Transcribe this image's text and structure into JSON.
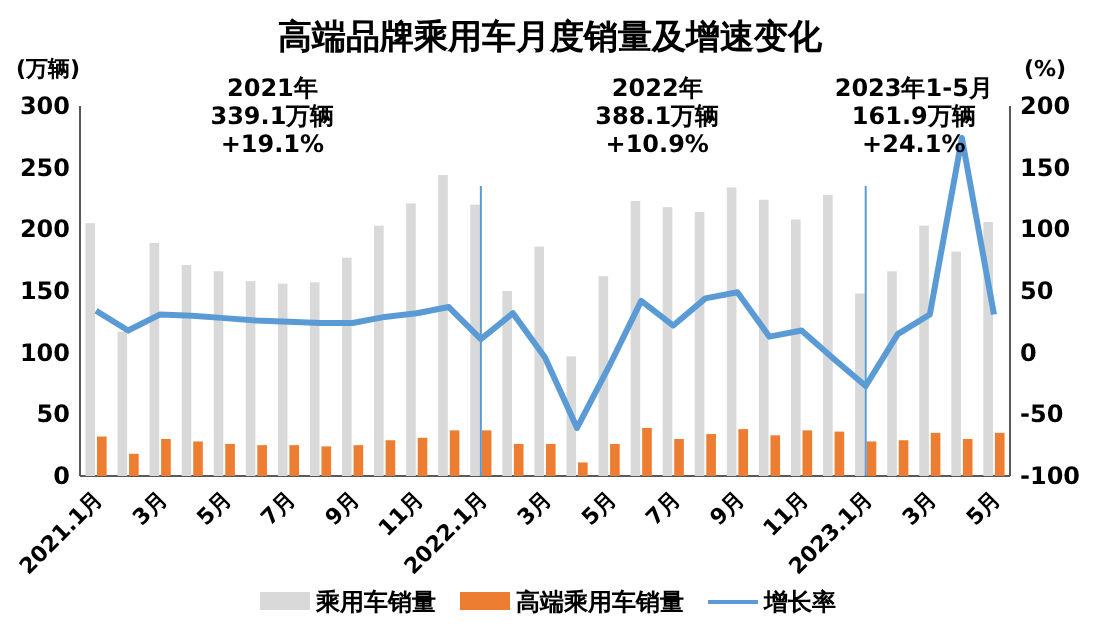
{
  "chart_data": {
    "type": "bar",
    "title": "高端品牌乘用车月度销量及增速变化",
    "ylabel": "(万辆)",
    "y2label": "(%)",
    "categories": [
      "2021.1月",
      null,
      "3月",
      null,
      "5月",
      null,
      "7月",
      null,
      "9月",
      null,
      "11月",
      null,
      "2022.1月",
      null,
      "3月",
      null,
      "5月",
      null,
      "7月",
      null,
      "9月",
      null,
      "11月",
      null,
      "2023.1月",
      null,
      "3月",
      null,
      "5月"
    ],
    "series": [
      {
        "name": "乘用车销量",
        "color": "#d9d9d9",
        "values": [
          205,
          117,
          189,
          171,
          166,
          158,
          156,
          157,
          177,
          203,
          221,
          244,
          220,
          150,
          186,
          97,
          162,
          223,
          218,
          214,
          234,
          224,
          208,
          228,
          148,
          166,
          203,
          182,
          206
        ]
      },
      {
        "name": "高端乘用车销量",
        "color": "#ed7d31",
        "values": [
          32,
          18,
          30,
          28,
          26,
          25,
          25,
          24,
          25,
          29,
          31,
          37,
          37,
          26,
          26,
          11,
          26,
          39,
          30,
          34,
          38,
          33,
          37,
          36,
          28,
          29,
          35,
          30,
          35
        ]
      },
      {
        "name": "增长率",
        "type": "line",
        "axis": "y2",
        "color": "#5b9bd5",
        "values": [
          34,
          18,
          31,
          30,
          28,
          26,
          25,
          24,
          24,
          29,
          32,
          37,
          11,
          32,
          -4,
          -61,
          -11,
          42,
          22,
          44,
          49,
          13,
          18,
          -5,
          -27,
          15,
          31,
          174,
          31
        ]
      }
    ],
    "ylim": [
      0,
      300
    ],
    "yticks": [
      0,
      50,
      100,
      150,
      200,
      250,
      300
    ],
    "y2lim": [
      -100,
      200
    ],
    "y2ticks": [
      -100,
      -50,
      0,
      50,
      100,
      150,
      200
    ],
    "ref_lines": [
      {
        "axis": "x",
        "value": "2022.1月",
        "color": "#5b9bd5"
      },
      {
        "axis": "x",
        "value": "2023.1月",
        "color": "#5b9bd5"
      }
    ],
    "annotations": [
      "2021年\n339.1万辆\n+19.1%",
      "2022年\n388.1万辆\n+10.9%",
      "2023年1-5月\n161.9万辆\n+24.1%"
    ],
    "legend": "bottom",
    "grid": false
  }
}
